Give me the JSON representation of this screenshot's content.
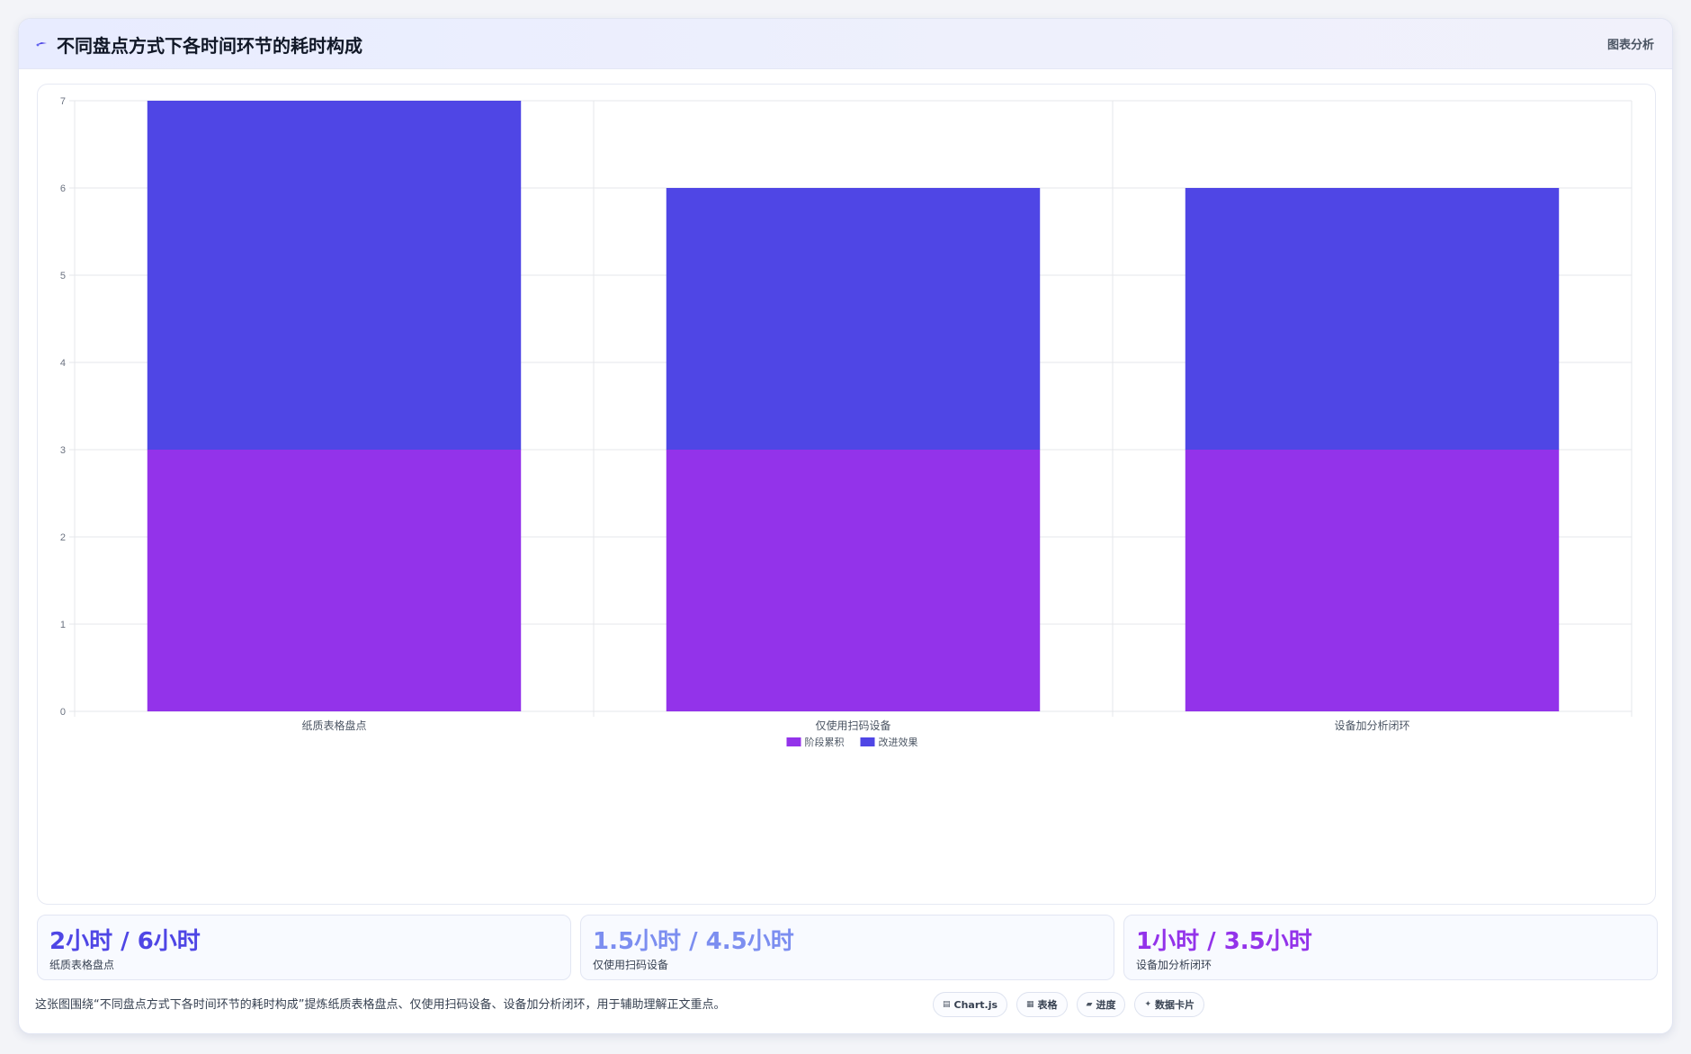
{
  "header": {
    "title": "不同盘点方式下各时间环节的耗时构成",
    "right_label": "图表分析",
    "icon": "sparkle-icon"
  },
  "chart_data": {
    "type": "bar",
    "stacked": true,
    "categories": [
      "纸质表格盘点",
      "仅使用扫码设备",
      "设备加分析闭环"
    ],
    "series": [
      {
        "name": "阶段累积",
        "values": [
          3,
          3,
          3
        ],
        "color": "#9333ea"
      },
      {
        "name": "改进效果",
        "values": [
          4,
          3,
          3
        ],
        "color": "#4f46e5"
      }
    ],
    "ylim": [
      0,
      7
    ],
    "yticks": [
      0,
      1,
      2,
      3,
      4,
      5,
      6,
      7
    ],
    "grid": true,
    "legend_position": "bottom"
  },
  "stats": [
    {
      "value": "2小时 / 6小时",
      "label": "纸质表格盘点",
      "color": "#4f46e5"
    },
    {
      "value": "1.5小时 / 4.5小时",
      "label": "仅使用扫码设备",
      "color": "#7c8ef0"
    },
    {
      "value": "1小时 / 3.5小时",
      "label": "设备加分析闭环",
      "color": "#9333ea"
    }
  ],
  "footer": {
    "text": "这张图围绕“不同盘点方式下各时间环节的耗时构成”提炼纸质表格盘点、仅使用扫码设备、设备加分析闭环，用于辅助理解正文重点。"
  },
  "chips": [
    {
      "icon": "chart-icon",
      "glyph": "▤",
      "label": "Chart.js"
    },
    {
      "icon": "table-icon",
      "glyph": "▦",
      "label": "表格"
    },
    {
      "icon": "progress-icon",
      "glyph": "▰",
      "label": "进度"
    },
    {
      "icon": "card-icon",
      "glyph": "✦",
      "label": "数据卡片"
    }
  ]
}
